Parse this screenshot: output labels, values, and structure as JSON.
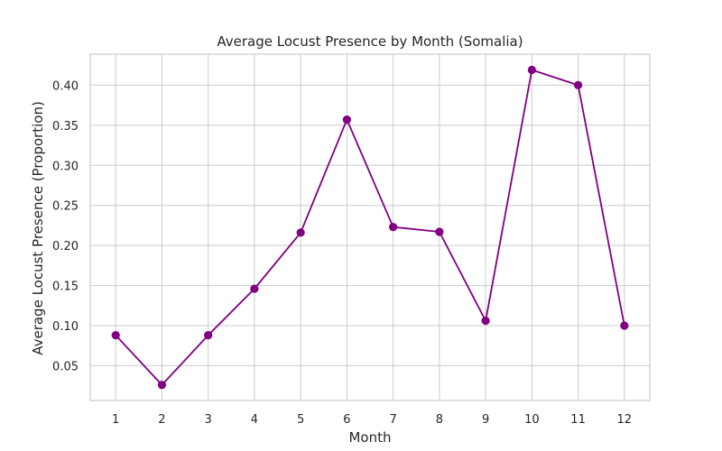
{
  "chart_data": {
    "type": "line",
    "title": "Average Locust Presence by Month (Somalia)",
    "xlabel": "Month",
    "ylabel": "Average Locust Presence (Proportion)",
    "x": [
      1,
      2,
      3,
      4,
      5,
      6,
      7,
      8,
      9,
      10,
      11,
      12
    ],
    "x_tick_labels": [
      "1",
      "2",
      "3",
      "4",
      "5",
      "6",
      "7",
      "8",
      "9",
      "10",
      "11",
      "12"
    ],
    "y_ticks": [
      0.05,
      0.1,
      0.15,
      0.2,
      0.25,
      0.3,
      0.35,
      0.4
    ],
    "y_tick_labels": [
      "0.05",
      "0.10",
      "0.15",
      "0.20",
      "0.25",
      "0.30",
      "0.35",
      "0.40"
    ],
    "xlim": [
      0.45,
      12.55
    ],
    "ylim": [
      0.0066,
      0.4387
    ],
    "series": [
      {
        "values": [
          0.088,
          0.026,
          0.088,
          0.146,
          0.216,
          0.357,
          0.223,
          0.217,
          0.106,
          0.419,
          0.4,
          0.1
        ]
      }
    ],
    "color": "#800080",
    "marker": "circle",
    "grid": true,
    "legend": "none"
  }
}
